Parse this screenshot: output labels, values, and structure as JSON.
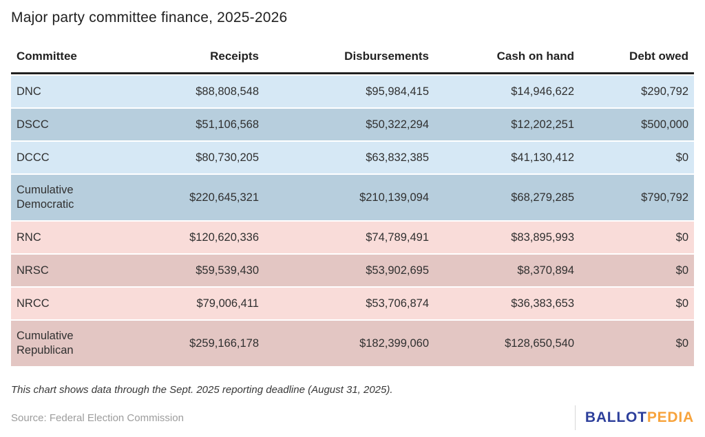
{
  "title": "Major party committee finance, 2025-2026",
  "table": {
    "columns": [
      "Committee",
      "Receipts",
      "Disbursements",
      "Cash on hand",
      "Debt owed"
    ],
    "rows": [
      {
        "committee": "DNC",
        "receipts": "$88,808,548",
        "disbursements": "$95,984,415",
        "cash_on_hand": "$14,946,622",
        "debt_owed": "$290,792"
      },
      {
        "committee": "DSCC",
        "receipts": "$51,106,568",
        "disbursements": "$50,322,294",
        "cash_on_hand": "$12,202,251",
        "debt_owed": "$500,000"
      },
      {
        "committee": "DCCC",
        "receipts": "$80,730,205",
        "disbursements": "$63,832,385",
        "cash_on_hand": "$41,130,412",
        "debt_owed": "$0"
      },
      {
        "committee": "Cumulative Democratic",
        "receipts": "$220,645,321",
        "disbursements": "$210,139,094",
        "cash_on_hand": "$68,279,285",
        "debt_owed": "$790,792"
      },
      {
        "committee": "RNC",
        "receipts": "$120,620,336",
        "disbursements": "$74,789,491",
        "cash_on_hand": "$83,895,993",
        "debt_owed": "$0"
      },
      {
        "committee": "NRSC",
        "receipts": "$59,539,430",
        "disbursements": "$53,902,695",
        "cash_on_hand": "$8,370,894",
        "debt_owed": "$0"
      },
      {
        "committee": "NRCC",
        "receipts": "$79,006,411",
        "disbursements": "$53,706,874",
        "cash_on_hand": "$36,383,653",
        "debt_owed": "$0"
      },
      {
        "committee": "Cumulative Republican",
        "receipts": "$259,166,178",
        "disbursements": "$182,399,060",
        "cash_on_hand": "$128,650,540",
        "debt_owed": "$0"
      }
    ]
  },
  "note": "This chart shows data through the Sept. 2025 reporting deadline (August 31, 2025).",
  "source": "Source: Federal Election Commission",
  "logo": {
    "part1": "BALLOT",
    "part2": "PEDIA"
  },
  "colors": {
    "democratic_light": "#d6e8f5",
    "democratic_dark": "#b7cedd",
    "republican_light": "#f9dcd9",
    "republican_dark": "#e3c6c3",
    "header_rule": "#212121",
    "logo_blue": "#2d3f9b",
    "logo_orange": "#f7a33c"
  },
  "chart_data": {
    "type": "table",
    "title": "Major party committee finance, 2025-2026",
    "categories": [
      "DNC",
      "DSCC",
      "DCCC",
      "Cumulative Democratic",
      "RNC",
      "NRSC",
      "NRCC",
      "Cumulative Republican"
    ],
    "series": [
      {
        "name": "Receipts",
        "values": [
          88808548,
          51106568,
          80730205,
          220645321,
          120620336,
          59539430,
          79006411,
          259166178
        ]
      },
      {
        "name": "Disbursements",
        "values": [
          95984415,
          50322294,
          63832385,
          210139094,
          74789491,
          53902695,
          53706874,
          182399060
        ]
      },
      {
        "name": "Cash on hand",
        "values": [
          14946622,
          12202251,
          41130412,
          68279285,
          83895993,
          8370894,
          36383653,
          128650540
        ]
      },
      {
        "name": "Debt owed",
        "values": [
          290792,
          500000,
          0,
          790792,
          0,
          0,
          0,
          0
        ]
      }
    ],
    "notes": "Rows shaded blue are Democratic committees; rows shaded red are Republican committees."
  }
}
